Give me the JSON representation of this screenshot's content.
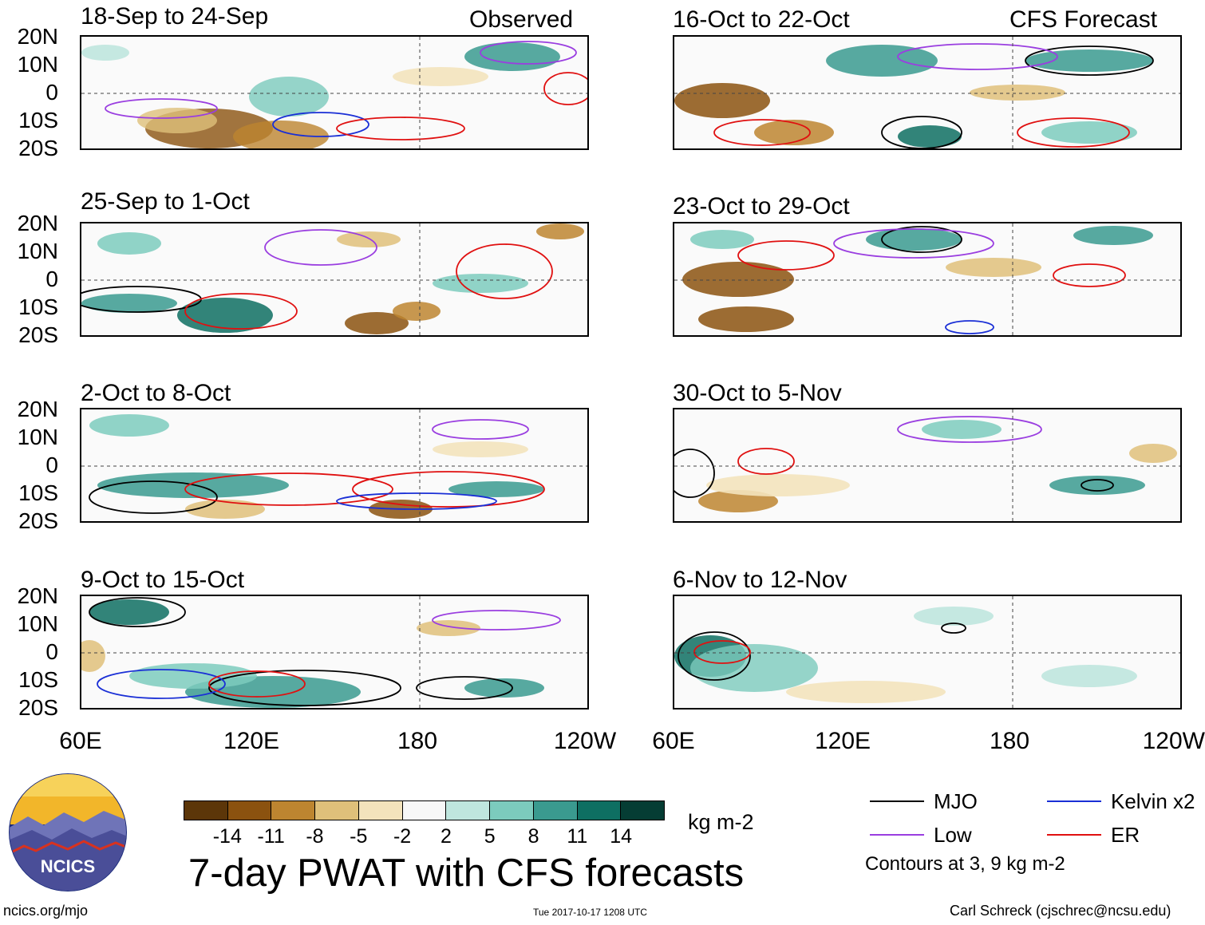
{
  "header": {
    "observed_label": "Observed",
    "forecast_label": "CFS Forecast"
  },
  "panels": [
    {
      "title": "18-Sep to 24-Sep",
      "column": "observed"
    },
    {
      "title": "25-Sep to 1-Oct",
      "column": "observed"
    },
    {
      "title": "2-Oct to 8-Oct",
      "column": "observed"
    },
    {
      "title": "9-Oct to 15-Oct",
      "column": "observed"
    },
    {
      "title": "16-Oct to 22-Oct",
      "column": "forecast"
    },
    {
      "title": "23-Oct to 29-Oct",
      "column": "forecast"
    },
    {
      "title": "30-Oct to 5-Nov",
      "column": "forecast"
    },
    {
      "title": "6-Nov to 12-Nov",
      "column": "forecast"
    }
  ],
  "axes": {
    "lat_labels": [
      "20N",
      "10N",
      "0",
      "10S",
      "20S"
    ],
    "lon_labels": [
      "60E",
      "120E",
      "180",
      "120W"
    ]
  },
  "colorbar": {
    "ticks": [
      "-14",
      "-11",
      "-8",
      "-5",
      "-2",
      "2",
      "5",
      "8",
      "11",
      "14"
    ],
    "colors": [
      "#5c3609",
      "#8b520f",
      "#bd8530",
      "#dfc07a",
      "#f3e3bc",
      "#f7f7f7",
      "#bfe6de",
      "#7ccbbd",
      "#3a9a8f",
      "#0e6f62",
      "#053d34"
    ],
    "units": "kg m-2"
  },
  "title": "7-day PWAT with CFS forecasts",
  "legend": {
    "items": [
      {
        "label": "MJO",
        "color": "#000000"
      },
      {
        "label": "Kelvin x2",
        "color": "#1a2fd6"
      },
      {
        "label": "Low",
        "color": "#9a3ee0"
      },
      {
        "label": "ER",
        "color": "#e01010"
      }
    ],
    "note": "Contours at 3, 9 kg m-2"
  },
  "footer": {
    "left": "ncics.org/mjo",
    "center": "Tue 2017-10-17 1208 UTC",
    "right": "Carl Schreck (cjschrec@ncsu.edu)"
  },
  "logo": {
    "text": "NCICS"
  }
}
